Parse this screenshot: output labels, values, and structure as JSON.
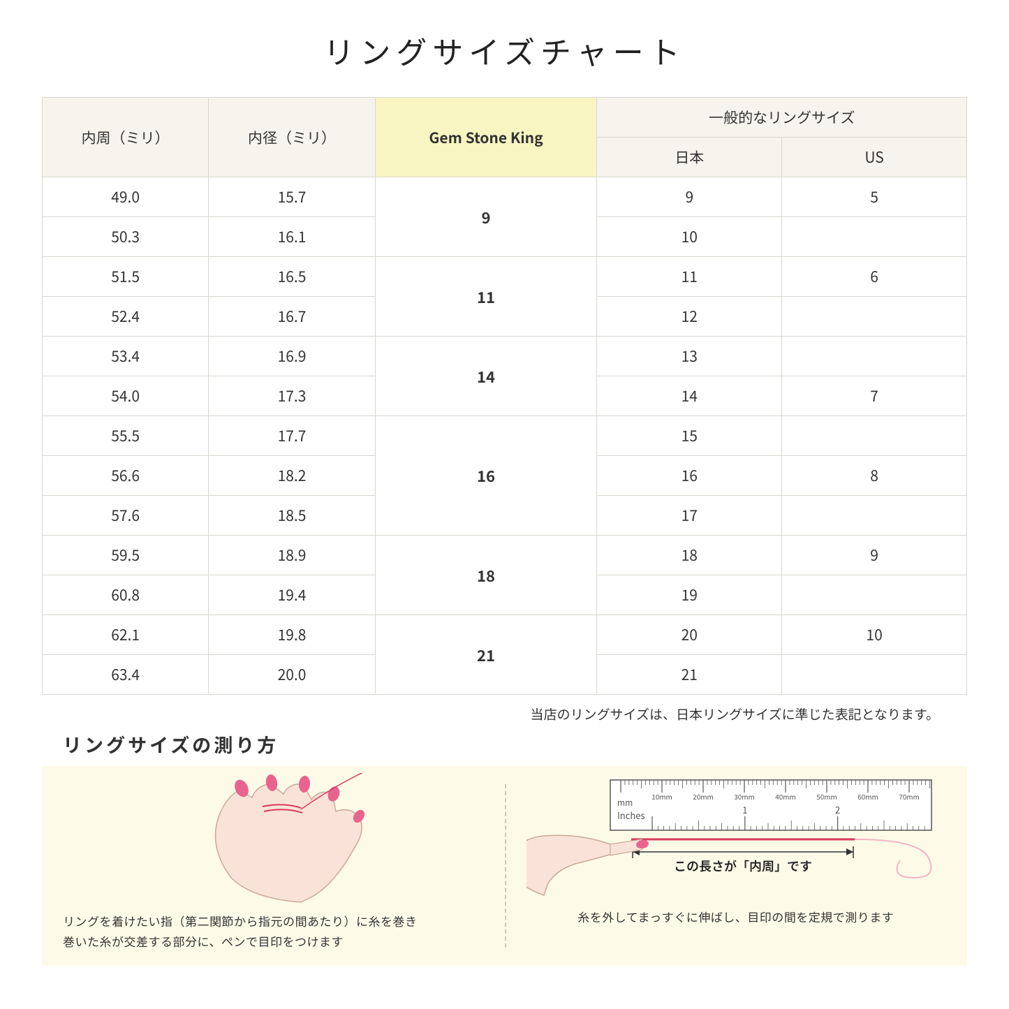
{
  "title": "リングサイズチャート",
  "columns": {
    "circumference": "内周（ミリ）",
    "diameter": "内径（ミリ）",
    "gsk": "Gem Stone King",
    "general_group": "一般的なリングサイズ",
    "japan": "日本",
    "us": "US"
  },
  "groups": [
    {
      "gsk": "9",
      "rows": [
        {
          "c": "49.0",
          "d": "15.7",
          "jp": "9",
          "us": "5"
        },
        {
          "c": "50.3",
          "d": "16.1",
          "jp": "10",
          "us": ""
        }
      ]
    },
    {
      "gsk": "11",
      "rows": [
        {
          "c": "51.5",
          "d": "16.5",
          "jp": "11",
          "us": "6"
        },
        {
          "c": "52.4",
          "d": "16.7",
          "jp": "12",
          "us": ""
        }
      ]
    },
    {
      "gsk": "14",
      "rows": [
        {
          "c": "53.4",
          "d": "16.9",
          "jp": "13",
          "us": ""
        },
        {
          "c": "54.0",
          "d": "17.3",
          "jp": "14",
          "us": "7"
        }
      ]
    },
    {
      "gsk": "16",
      "rows": [
        {
          "c": "55.5",
          "d": "17.7",
          "jp": "15",
          "us": ""
        },
        {
          "c": "56.6",
          "d": "18.2",
          "jp": "16",
          "us": "8"
        },
        {
          "c": "57.6",
          "d": "18.5",
          "jp": "17",
          "us": ""
        }
      ]
    },
    {
      "gsk": "18",
      "rows": [
        {
          "c": "59.5",
          "d": "18.9",
          "jp": "18",
          "us": "9"
        },
        {
          "c": "60.8",
          "d": "19.4",
          "jp": "19",
          "us": ""
        }
      ]
    },
    {
      "gsk": "21",
      "rows": [
        {
          "c": "62.1",
          "d": "19.8",
          "jp": "20",
          "us": "10"
        },
        {
          "c": "63.4",
          "d": "20.0",
          "jp": "21",
          "us": ""
        }
      ]
    }
  ],
  "note": "当店のリングサイズは、日本リングサイズに準じた表記となります。",
  "measure": {
    "title": "リングサイズの測り方",
    "left_caption": "リングを着けたい指（第二関節から指元の間あたり）に糸を巻き\n巻いた糸が交差する部分に、ペンで目印をつけます",
    "right_label": "この長さが「内周」です",
    "right_caption": "糸を外してまっすぐに伸ばし、目印の間を定規で測ります",
    "ruler_mm_label": "mm",
    "ruler_inches_label": "Inches",
    "ruler_mm_marks": [
      "10mm",
      "20mm",
      "30mm",
      "40mm",
      "50mm",
      "60mm",
      "70mm"
    ],
    "ruler_inch_marks": [
      "1",
      "2"
    ]
  },
  "colors": {
    "header_bg": "#f6f4ec",
    "gsk_bg": "#f8f5c2",
    "border": "#d8d8d0",
    "panel_bg": "#fdfbe8",
    "hand_fill": "#f9e3d9",
    "hand_stroke": "#caa896",
    "nail": "#e8648e",
    "thread": "#d83a5e",
    "ruler_fill": "#ffffff",
    "ruler_stroke": "#555555"
  }
}
